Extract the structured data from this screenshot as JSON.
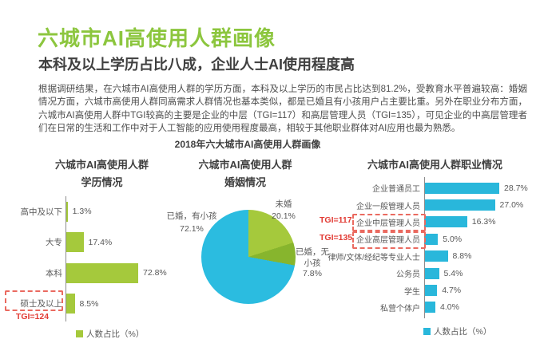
{
  "header": {
    "title": "六城市AI高使用人群画像",
    "subtitle": "本科及以上学历占比八成，企业人士AI使用程度高",
    "paragraph": "根据调研结果，在六城市AI高使用人群的学历方面，本科及以上学历的市民占比达到81.2%，受教育水平普遍较高：婚姻情况方面，六城市高使用人群同高需求人群情况也基本类似，都是已婚且有小孩用户占主要比重。另外在职业分布方面，六城市AI高使用人群中TGI较高的主要是企业的中层（TGI=117）和高层管理人员（TGI=135），可见企业的中高层管理者们在日常的生活和工作中对于人工智能的应用使用程度最高，相较于其他职业群体对AI应用也最为熟悉。"
  },
  "section": {
    "title": "2018年六大城市AI高使用人群画像"
  },
  "colors": {
    "brand_green": "#8cc63e",
    "bar_green": "#a5c93c",
    "pie_dark_green": "#87b52d",
    "pie_cyan": "#2bbce0",
    "cyan": "#29b7db",
    "tgi_red": "#e23b34",
    "box_red": "#ea6a60",
    "text_dark": "#3f3f3f",
    "text_body": "#4d4d4d",
    "text_label": "#595959",
    "axis_gray": "#8c8c8c"
  },
  "chart_data": [
    {
      "type": "bar",
      "orientation": "horizontal",
      "title": "六城市AI高使用人群学历情况",
      "title_lines": [
        "六城市AI高使用人群",
        "学历情况"
      ],
      "categories": [
        "高中及以下",
        "大专",
        "本科",
        "硕士及以上"
      ],
      "values": [
        1.3,
        17.4,
        72.8,
        8.5
      ],
      "value_labels": [
        "1.3%",
        "17.4%",
        "72.8%",
        "8.5%"
      ],
      "xlim": [
        0,
        80
      ],
      "grid": false,
      "legend": "人数占比（%）",
      "bar_color": "#a5c93c",
      "highlight": {
        "category": "硕士及以上",
        "tgi_label": "TGI=124"
      }
    },
    {
      "type": "pie",
      "title": "六城市AI高使用人群婚姻情况",
      "title_lines": [
        "六城市AI高使用人群",
        "婚姻情况"
      ],
      "start_angle_deg": 0,
      "slices": [
        {
          "label": "未婚",
          "value": 20.1,
          "display": "20.1%",
          "color": "#a5c93c"
        },
        {
          "label": "已婚，无小孩",
          "value": 7.8,
          "display": "7.8%",
          "color": "#87b52d"
        },
        {
          "label": "已婚，有小孩",
          "value": 72.1,
          "display": "72.1%",
          "color": "#2bbce0"
        }
      ]
    },
    {
      "type": "bar",
      "orientation": "horizontal",
      "title": "六城市AI高使用人群职业情况",
      "title_lines": [
        "六城市AI高使用人群职业情况"
      ],
      "categories": [
        "企业普通员工",
        "企业一般管理人员",
        "企业中层管理人员",
        "企业高层管理人员",
        "律师/文体/经纪等专业人士",
        "公务员",
        "学生",
        "私营个体户"
      ],
      "values": [
        28.7,
        27.0,
        16.3,
        5.0,
        8.8,
        5.4,
        4.7,
        4.0
      ],
      "value_labels": [
        "28.7%",
        "27.0%",
        "16.3%",
        "5.0%",
        "8.8%",
        "5.4%",
        "4.7%",
        "4.0%"
      ],
      "xlim": [
        0,
        32
      ],
      "grid": false,
      "legend": "人数占比（%）",
      "bar_color": "#29b7db",
      "highlights": [
        {
          "category": "企业中层管理人员",
          "tgi_label": "TGI=117"
        },
        {
          "category": "企业高层管理人员",
          "tgi_label": "TGI=135"
        }
      ]
    }
  ]
}
